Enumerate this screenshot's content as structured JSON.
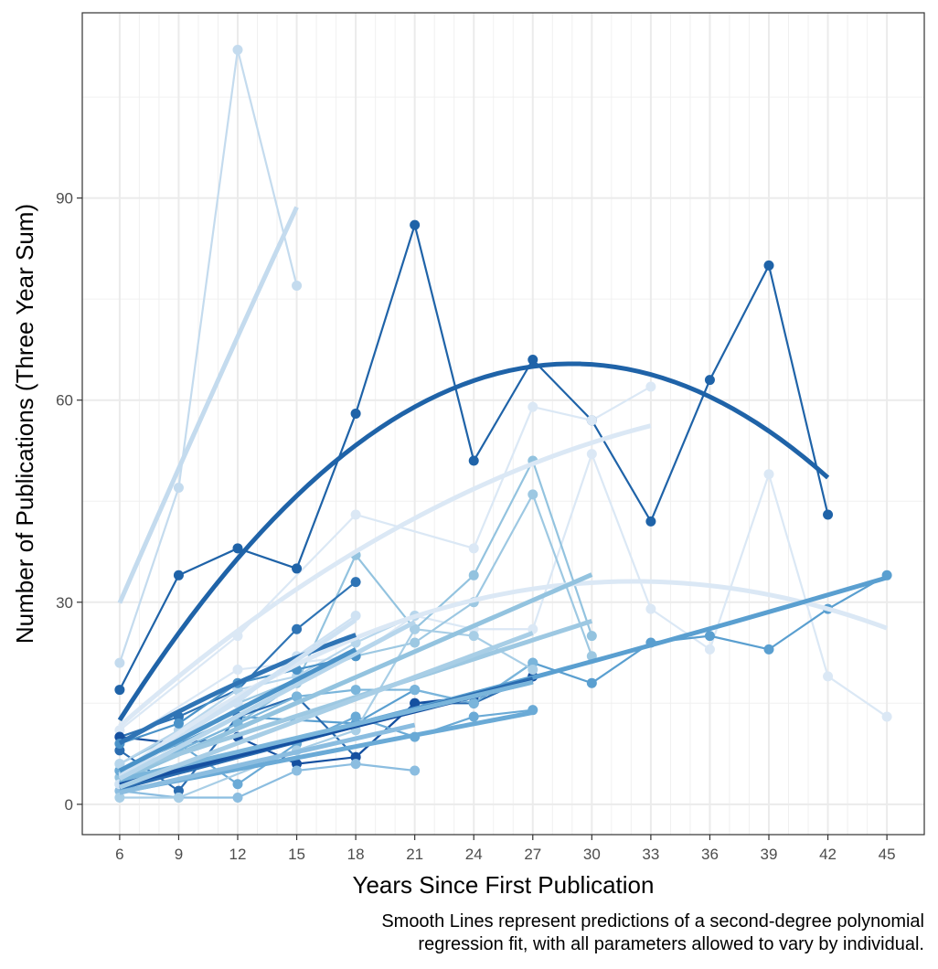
{
  "chart_data": {
    "type": "line",
    "xlabel": "Years Since First Publication",
    "ylabel": "Number of Publications (Three Year Sum)",
    "caption": [
      "Smooth Lines represent predictions of a second-degree polynomial",
      "regression fit, with all parameters allowed to vary by individual."
    ],
    "x_ticks": [
      6,
      9,
      12,
      15,
      18,
      21,
      24,
      27,
      30,
      33,
      36,
      39,
      42,
      45
    ],
    "y_ticks": [
      0,
      30,
      60,
      90
    ],
    "xlim": [
      4.1,
      46.9
    ],
    "ylim": [
      -4.5,
      117.5
    ],
    "grid": true,
    "legend": "none",
    "series": [
      {
        "color": "#1f63a8",
        "values": [
          [
            6,
            17
          ],
          [
            9,
            34
          ],
          [
            12,
            38
          ],
          [
            15,
            35
          ],
          [
            18,
            58
          ],
          [
            21,
            86
          ],
          [
            24,
            51
          ],
          [
            27,
            66
          ],
          [
            30,
            57
          ],
          [
            33,
            42
          ],
          [
            36,
            63
          ],
          [
            39,
            80
          ],
          [
            42,
            43
          ]
        ],
        "fit": [
          -18.7,
          5.8,
          -0.1
        ]
      },
      {
        "color": "#c4dbee",
        "values": [
          [
            6,
            21
          ],
          [
            9,
            47
          ],
          [
            12,
            112
          ],
          [
            15,
            77
          ]
        ],
        "fit": [
          -11.1,
          6.95,
          -0.02
        ]
      },
      {
        "color": "#dbe8f5",
        "values": [
          [
            6,
            11
          ],
          [
            12,
            25
          ],
          [
            18,
            43
          ],
          [
            24,
            38
          ],
          [
            27,
            59
          ],
          [
            30,
            57
          ],
          [
            33,
            62
          ]
        ],
        "fit": [
          -5,
          2.97,
          -0.0338
        ]
      },
      {
        "color": "#dbe8f5",
        "values": [
          [
            6,
            9
          ],
          [
            12,
            20
          ],
          [
            18,
            22
          ],
          [
            21,
            28
          ],
          [
            24,
            26
          ],
          [
            27,
            26
          ],
          [
            30,
            52
          ],
          [
            33,
            29
          ],
          [
            36,
            23
          ],
          [
            39,
            49
          ],
          [
            42,
            19
          ],
          [
            45,
            13
          ]
        ],
        "fit": [
          -10.3,
          2.7,
          -0.042
        ]
      },
      {
        "color": "#5a9fd0",
        "values": [
          [
            6,
            5
          ],
          [
            12,
            13
          ],
          [
            18,
            12
          ],
          [
            21,
            17
          ],
          [
            24,
            15
          ],
          [
            27,
            21
          ],
          [
            30,
            18
          ],
          [
            33,
            24
          ],
          [
            36,
            25
          ],
          [
            39,
            23
          ],
          [
            42,
            29
          ],
          [
            45,
            34
          ]
        ],
        "fit": [
          -1,
          0.68,
          0.002
        ]
      },
      {
        "color": "#93c3df",
        "values": [
          [
            6,
            4
          ],
          [
            12,
            12
          ],
          [
            15,
            18
          ],
          [
            18,
            37
          ],
          [
            21,
            26
          ],
          [
            24,
            34
          ],
          [
            27,
            51
          ],
          [
            30,
            25
          ]
        ],
        "fit": [
          -4,
          1.27,
          0
        ]
      },
      {
        "color": "#9dc8e2",
        "values": [
          [
            6,
            6
          ],
          [
            12,
            15
          ],
          [
            18,
            22
          ],
          [
            21,
            24
          ],
          [
            24,
            30
          ],
          [
            27,
            46
          ],
          [
            30,
            22
          ]
        ],
        "fit": [
          -1,
          0.94,
          0
        ]
      },
      {
        "color": "#2f74b5",
        "values": [
          [
            6,
            10
          ],
          [
            9,
            13
          ],
          [
            12,
            17
          ],
          [
            15,
            26
          ],
          [
            18,
            33
          ]
        ],
        "fit": [
          -1.67,
          1.94,
          -0.025
        ]
      },
      {
        "color": "#2a6cb0",
        "values": [
          [
            6,
            8
          ],
          [
            9,
            2
          ],
          [
            12,
            13
          ],
          [
            15,
            16
          ],
          [
            18,
            7
          ],
          [
            21,
            15
          ],
          [
            24,
            15
          ],
          [
            27,
            19
          ]
        ],
        "fit": [
          -2.2,
          0.77,
          0
        ]
      },
      {
        "color": "#1550a0",
        "values": [
          [
            6,
            10
          ],
          [
            9,
            9
          ],
          [
            12,
            10
          ],
          [
            15,
            6
          ],
          [
            18,
            7
          ],
          [
            21,
            15
          ],
          [
            24,
            16
          ],
          [
            27,
            19
          ]
        ],
        "fit": [
          -1.5,
          0.73,
          0
        ]
      },
      {
        "color": "#6aaad6",
        "values": [
          [
            6,
            5
          ],
          [
            9,
            9
          ],
          [
            12,
            3
          ],
          [
            15,
            9
          ],
          [
            18,
            13
          ],
          [
            21,
            10
          ],
          [
            24,
            13
          ],
          [
            27,
            14
          ]
        ],
        "fit": [
          -1.5,
          0.56,
          0
        ]
      },
      {
        "color": "#7ab5db",
        "values": [
          [
            6,
            3
          ],
          [
            9,
            8
          ],
          [
            12,
            12
          ],
          [
            15,
            16
          ],
          [
            18,
            17
          ],
          [
            21,
            17
          ],
          [
            24,
            15
          ],
          [
            27,
            21
          ]
        ],
        "fit": [
          -0.5,
          0.69,
          0
        ]
      },
      {
        "color": "#8bbde0",
        "values": [
          [
            6,
            2
          ],
          [
            9,
            1
          ],
          [
            12,
            1
          ],
          [
            15,
            5
          ],
          [
            18,
            6
          ],
          [
            21,
            5
          ]
        ],
        "fit": [
          -2.3,
          0.67,
          0
        ]
      },
      {
        "color": "#a8cee6",
        "values": [
          [
            6,
            1
          ],
          [
            9,
            1
          ],
          [
            15,
            8
          ],
          [
            18,
            11
          ],
          [
            21,
            26
          ],
          [
            24,
            25
          ],
          [
            27,
            20
          ]
        ],
        "fit": [
          -4,
          1.09,
          0
        ]
      },
      {
        "color": "#cfe2f3",
        "values": [
          [
            6,
            3
          ],
          [
            9,
            10
          ],
          [
            12,
            15
          ],
          [
            15,
            22
          ],
          [
            18,
            28
          ]
        ],
        "fit": [
          -7,
          1.82,
          0.005
        ]
      },
      {
        "color": "#b7d6ec",
        "values": [
          [
            6,
            6
          ],
          [
            9,
            11
          ],
          [
            12,
            17
          ],
          [
            15,
            19
          ],
          [
            18,
            24
          ],
          [
            21,
            28
          ]
        ],
        "fit": [
          -5.5,
          1.55,
          0
        ]
      },
      {
        "color": "#4a92c8",
        "values": [
          [
            6,
            9
          ],
          [
            9,
            12
          ],
          [
            12,
            18
          ],
          [
            15,
            20
          ],
          [
            18,
            22
          ]
        ],
        "fit": [
          -4,
          1.5,
          0
        ]
      }
    ]
  }
}
